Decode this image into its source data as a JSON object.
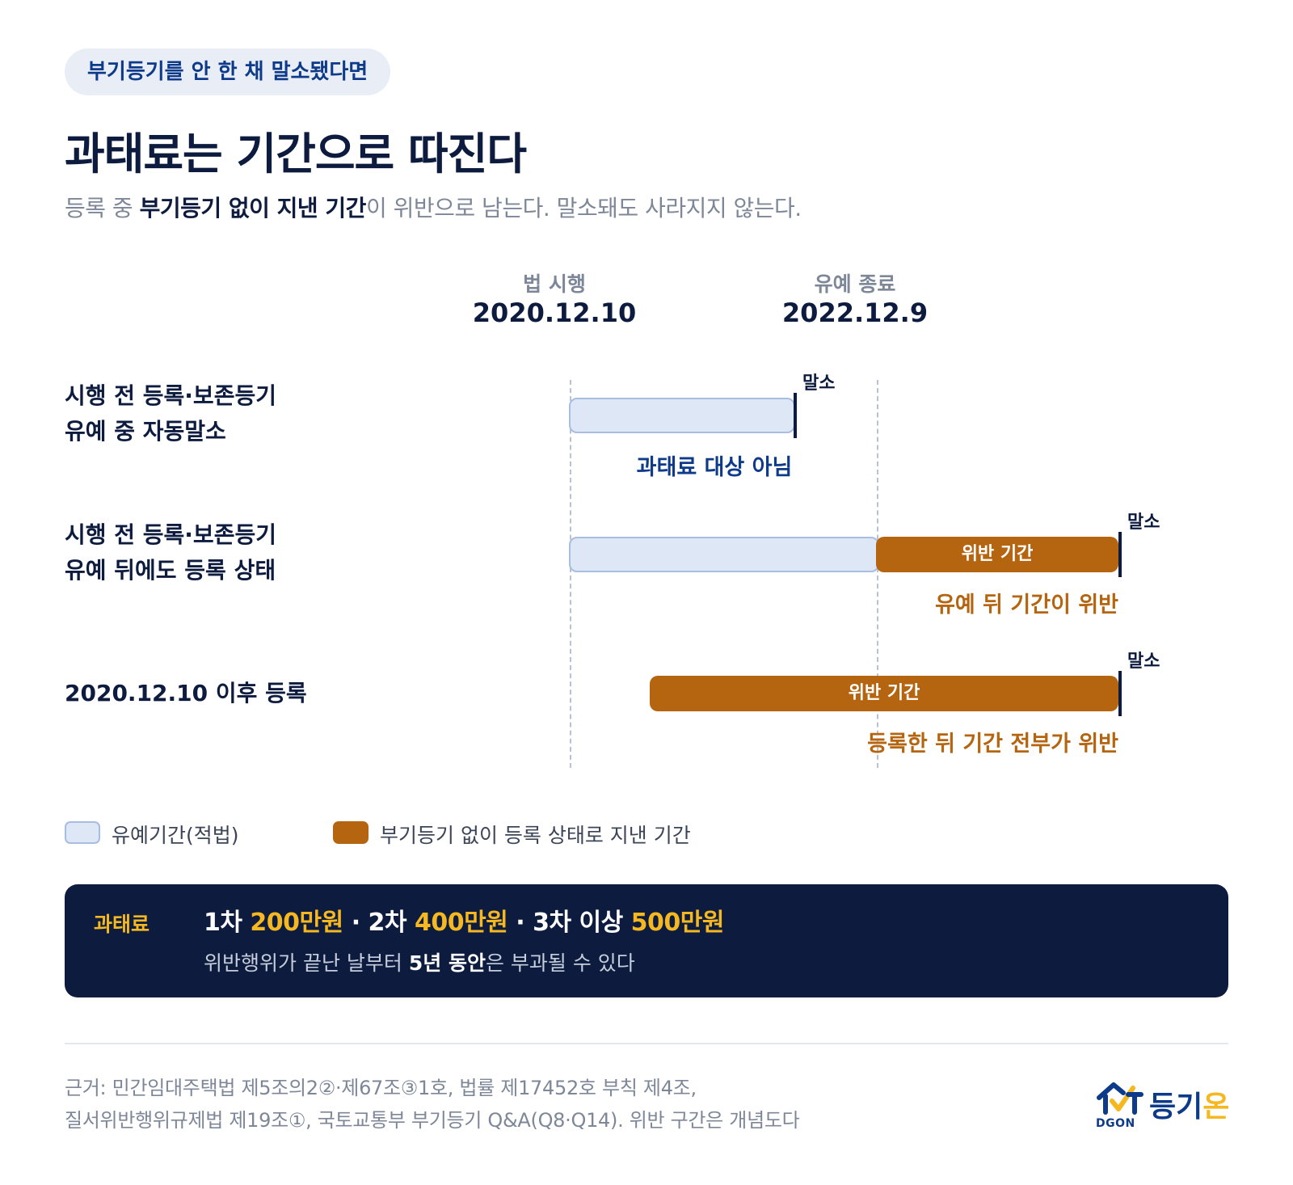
{
  "header": {
    "pill": "부기등기를 안 한 채 말소됐다면",
    "title": "과태료는 기간으로 따진다",
    "subtitle_pre": "등록 중 ",
    "subtitle_bold": "부기등기 없이 지낸 기간",
    "subtitle_post": "이 위반으로 남는다. 말소돼도 사라지지 않는다."
  },
  "timeline": {
    "markers": [
      {
        "label": "법 시행",
        "date": "2020.12.10"
      },
      {
        "label": "유예 종료",
        "date": "2022.12.9"
      }
    ],
    "rows": [
      {
        "label_line1": "시행 전 등록·보존등기",
        "label_line2": "유예 중 자동말소",
        "end_label": "말소",
        "note": "과태료 대상 아님"
      },
      {
        "label_line1": "시행 전 등록·보존등기",
        "label_line2": "유예 뒤에도 등록 상태",
        "bar_label": "위반 기간",
        "end_label": "말소",
        "note": "유예 뒤 기간이 위반"
      },
      {
        "label_line1": "2020.12.10 이후 등록",
        "bar_label": "위반 기간",
        "end_label": "말소",
        "note": "등록한 뒤 기간 전부가 위반"
      }
    ]
  },
  "legend": {
    "grace": "유예기간(적법)",
    "violation": "부기등기 없이 등록 상태로 지낸 기간"
  },
  "fine": {
    "tag": "과태료",
    "t1": "1차 ",
    "a1": "200만원",
    "t2": " · 2차 ",
    "a2": "400만원",
    "t3": " · 3차 이상 ",
    "a3": "500만원",
    "sub_pre": "위반행위가 끝난 날부터 ",
    "sub_bold": "5년 동안",
    "sub_post": "은 부과될 수 있다"
  },
  "source": {
    "line1": "근거: 민간임대주택법 제5조의2②·제67조③1호, 법률 제17452호 부칙 제4조,",
    "line2": "질서위반행위규제법 제19조①, 국토교통부 부기등기 Q&A(Q8·Q14). 위반 구간은 개념도다"
  },
  "logo": {
    "text_main": "등기",
    "text_on": "온",
    "sub": "DGON"
  },
  "colors": {
    "navy": "#0d1b3e",
    "blue": "#0e3a8a",
    "grace_fill": "#dde7f6",
    "violation": "#b5640f",
    "accent_yellow": "#f5b820",
    "muted": "#7d8798"
  }
}
